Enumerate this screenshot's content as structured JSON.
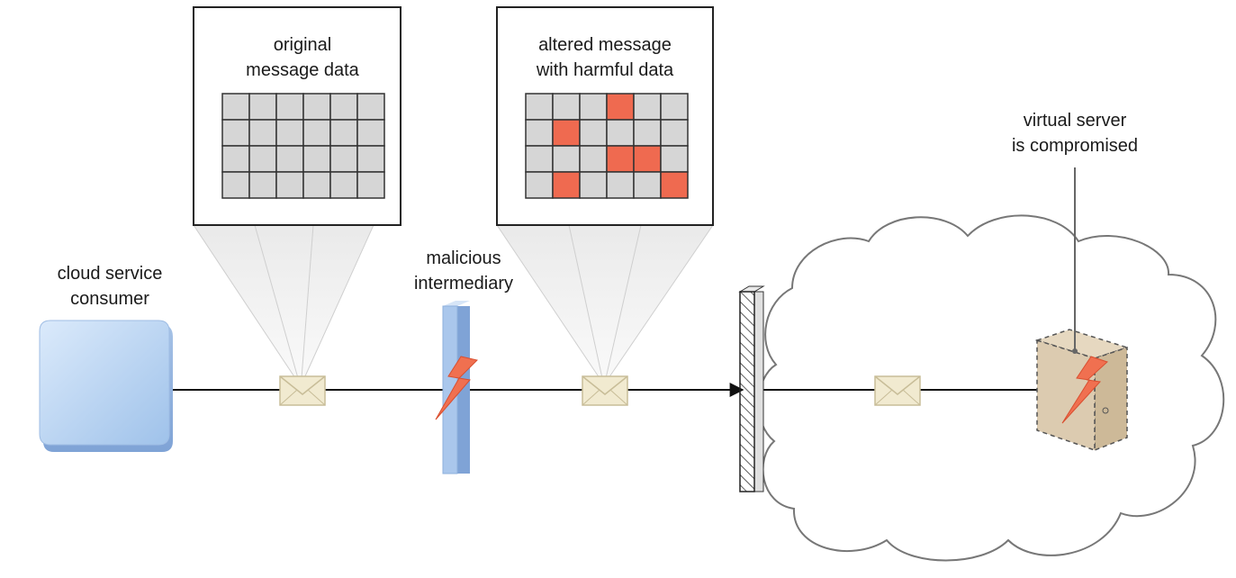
{
  "labels": {
    "original_line1": "original",
    "original_line2": "message data",
    "altered_line1": "altered message",
    "altered_line2": "with harmful data",
    "consumer_line1": "cloud service",
    "consumer_line2": "consumer",
    "intermediary_line1": "malicious",
    "intermediary_line2": "intermediary",
    "server_line1": "virtual server",
    "server_line2": "is compromised"
  },
  "grids": {
    "rows": 4,
    "cols": 6,
    "harmful_cells": [
      [
        0,
        3
      ],
      [
        1,
        1
      ],
      [
        2,
        3
      ],
      [
        2,
        4
      ],
      [
        3,
        1
      ],
      [
        3,
        5
      ]
    ]
  },
  "colors": {
    "cell": "#d6d6d6",
    "harmful_cell": "#ef6a50",
    "consumer": "#bcd7f2",
    "intermediary": "#a9c6ea",
    "envelope": "#f1ead0",
    "server": "#dccbb0",
    "lightning": "#f07050"
  }
}
